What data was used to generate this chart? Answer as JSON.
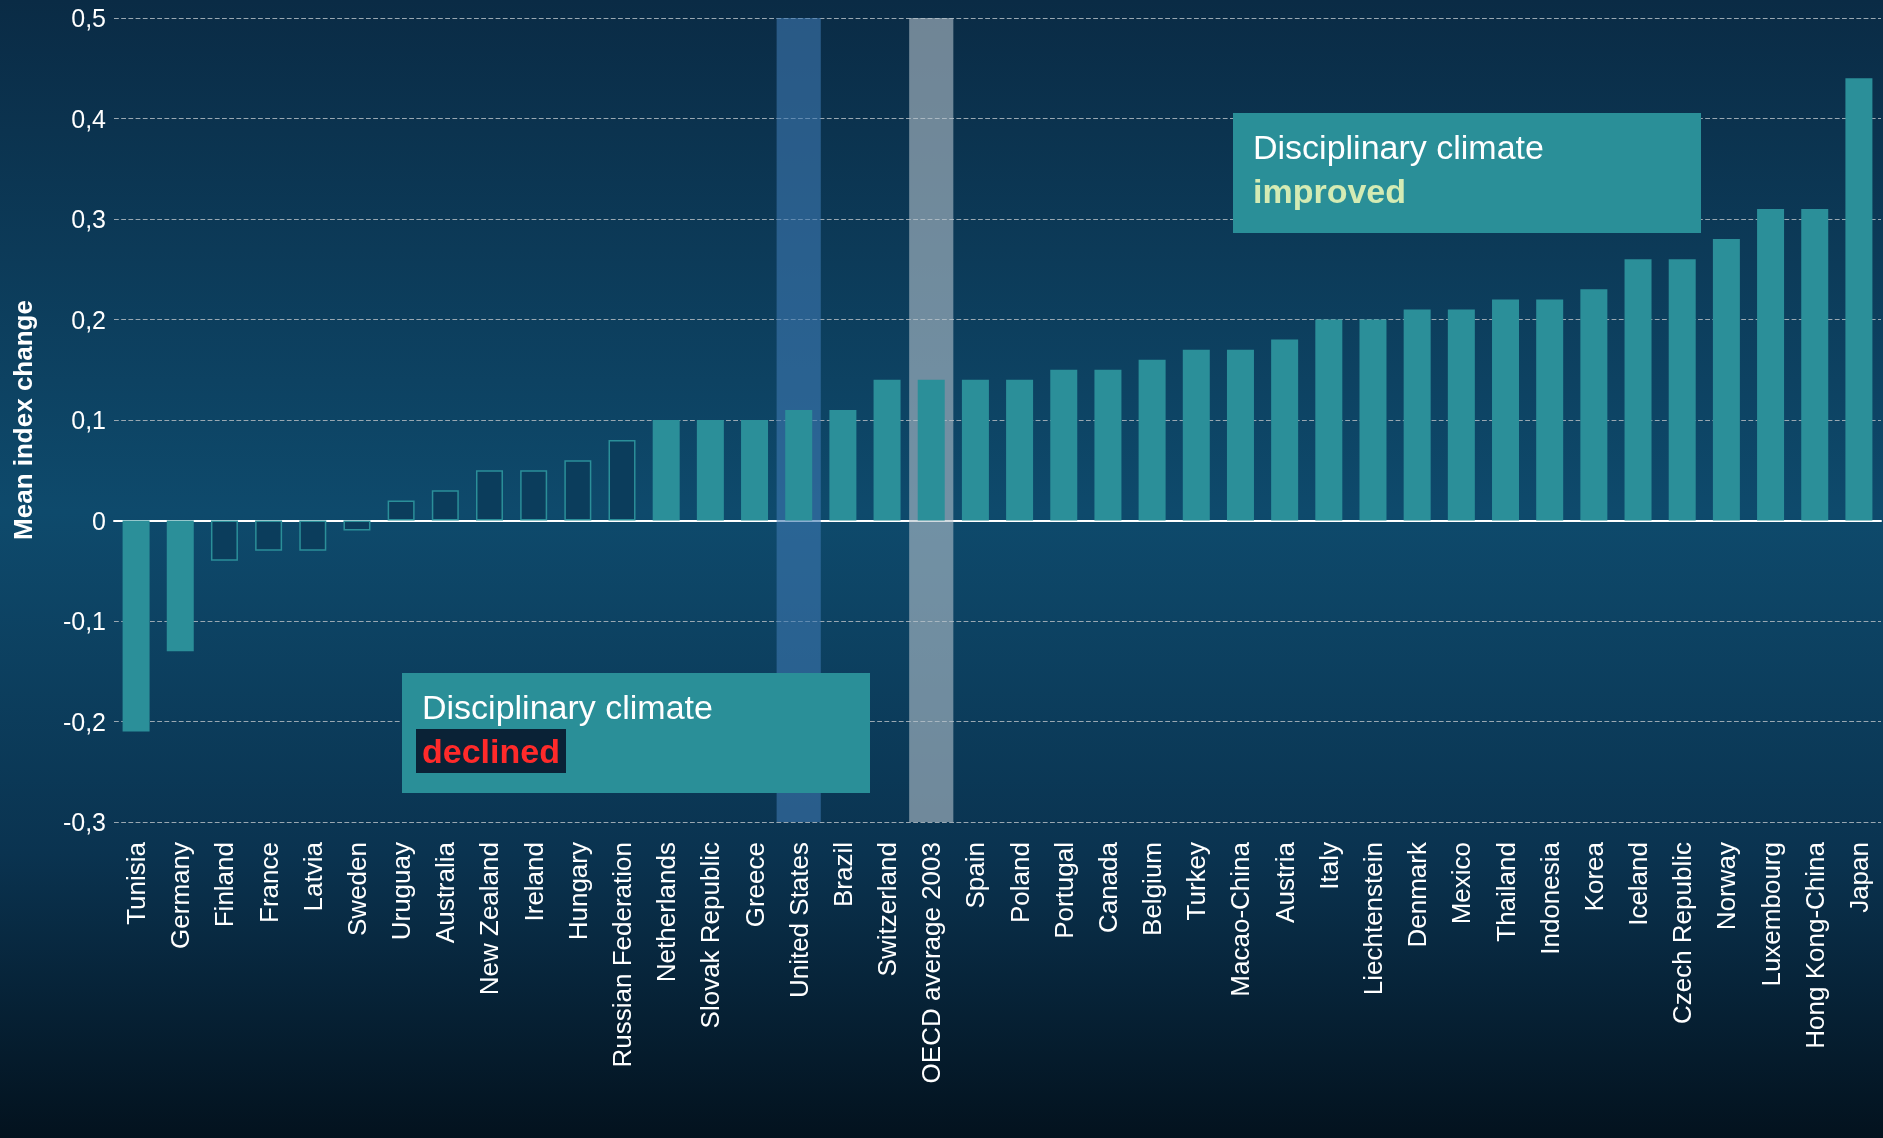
{
  "chart_data": {
    "type": "bar",
    "ylabel": "Mean index change",
    "categories": [
      "Tunisia",
      "Germany",
      "Finland",
      "France",
      "Latvia",
      "Sweden",
      "Uruguay",
      "Australia",
      "New Zealand",
      "Ireland",
      "Hungary",
      "Russian Federation",
      "Netherlands",
      "Slovak Republic",
      "Greece",
      "United States",
      "Brazil",
      "Switzerland",
      "OECD average 2003",
      "Spain",
      "Poland",
      "Portugal",
      "Canada",
      "Belgium",
      "Turkey",
      "Macao-China",
      "Austria",
      "Italy",
      "Liechtenstein",
      "Denmark",
      "Mexico",
      "Thailand",
      "Indonesia",
      "Korea",
      "Iceland",
      "Czech Republic",
      "Norway",
      "Luxembourg",
      "Hong Kong-China",
      "Japan"
    ],
    "series": [
      {
        "color": "#2b8f99",
        "values": [
          -0.21,
          -0.13,
          null,
          null,
          null,
          null,
          null,
          null,
          null,
          null,
          null,
          null,
          0.1,
          0.1,
          0.1,
          0.11,
          0.11,
          0.14,
          0.14,
          0.14,
          0.14,
          0.15,
          0.15,
          0.16,
          0.17,
          0.17,
          0.18,
          0.2,
          0.2,
          0.21,
          0.21,
          0.22,
          0.22,
          0.23,
          0.26,
          0.26,
          0.28,
          0.31,
          0.31,
          0.44
        ]
      },
      {
        "color": "#0b3d5c",
        "values": [
          null,
          null,
          -0.04,
          -0.03,
          -0.03,
          -0.01,
          0.02,
          0.03,
          0.05,
          0.05,
          0.06,
          0.08,
          null,
          null,
          null,
          null,
          null,
          null,
          null,
          null,
          null,
          null,
          null,
          null,
          null,
          null,
          null,
          null,
          null,
          null,
          null,
          null,
          null,
          null,
          null,
          null,
          null,
          null,
          null,
          null
        ]
      }
    ],
    "ylim": [
      -0.3,
      0.5
    ],
    "yticks": [
      {
        "value": -0.3,
        "label": "-0,3"
      },
      {
        "value": -0.2,
        "label": "-0,2"
      },
      {
        "value": -0.1,
        "label": "-0,1"
      },
      0,
      {
        "value": 0.1,
        "label": "0,1"
      },
      {
        "value": 0.2,
        "label": "0,2"
      },
      {
        "value": 0.3,
        "label": "0,3"
      },
      {
        "value": 0.4,
        "label": "0,4"
      },
      {
        "value": 0.5,
        "label": "0,5"
      }
    ],
    "grid": "y",
    "bands": [
      {
        "axis": "x",
        "from": "United States",
        "to": "United States",
        "color": "#3d78b0"
      },
      {
        "axis": "x",
        "from": "OECD average 2003",
        "to": "OECD average 2003",
        "color": "#b4c2cc"
      }
    ],
    "annotations": [
      "Disciplinary climate improved",
      "Disciplinary climate declined"
    ]
  }
}
